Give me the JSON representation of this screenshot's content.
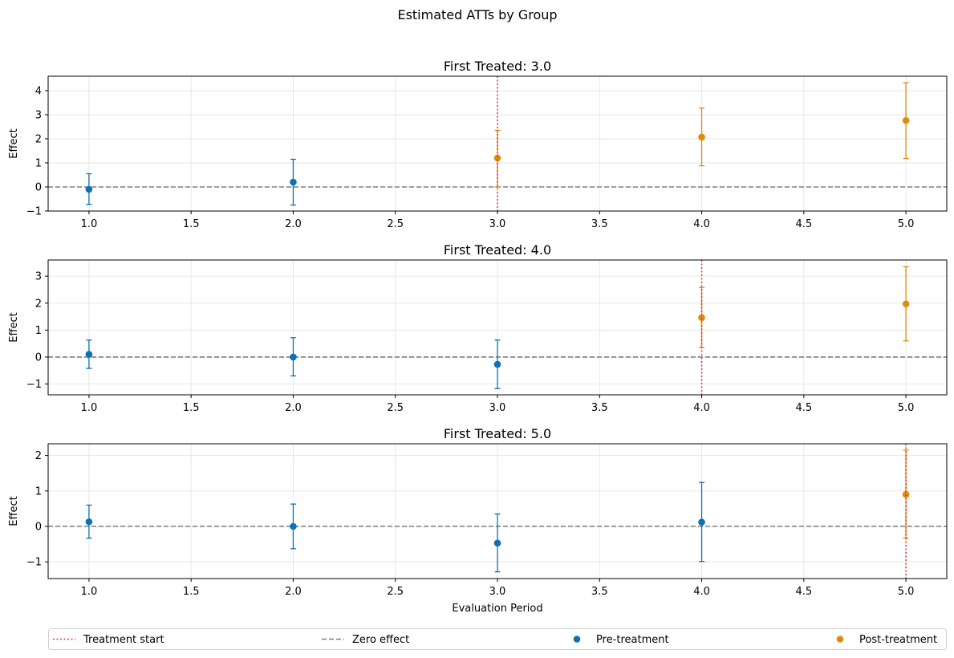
{
  "figure": {
    "title": "Estimated ATTs by Group"
  },
  "colors": {
    "pre": "#0b72b5",
    "post": "#e08c0b",
    "treatment_line": "#e8352b",
    "zero_line": "#7f7f7f",
    "grid": "#e6e6e6"
  },
  "legend": {
    "placement": "bottom-center",
    "items": [
      {
        "label": "Treatment start",
        "kind": "treatment"
      },
      {
        "label": "Zero effect",
        "kind": "zero"
      },
      {
        "label": "Pre-treatment",
        "kind": "pre"
      },
      {
        "label": "Post-treatment",
        "kind": "post"
      }
    ]
  },
  "chart_data": [
    {
      "type": "scatter",
      "title": "First Treated: 3.0",
      "xlabel": "",
      "ylabel": "Effect",
      "xlim": [
        0.8,
        5.2
      ],
      "ylim": [
        -1.0,
        4.6
      ],
      "xticks": [
        "1.0",
        "1.5",
        "2.0",
        "2.5",
        "3.0",
        "3.5",
        "4.0",
        "4.5",
        "5.0"
      ],
      "yticks": [
        "−1",
        "0",
        "1",
        "2",
        "3",
        "4"
      ],
      "ytick_values": [
        -1,
        0,
        1,
        2,
        3,
        4
      ],
      "treatment_start": 3.0,
      "grid": true,
      "points": [
        {
          "x": 1.0,
          "y": -0.1,
          "lo": -0.72,
          "hi": 0.55,
          "phase": "pre"
        },
        {
          "x": 2.0,
          "y": 0.2,
          "lo": -0.75,
          "hi": 1.15,
          "phase": "pre"
        },
        {
          "x": 3.0,
          "y": 1.2,
          "lo": 0.0,
          "hi": 2.35,
          "phase": "post"
        },
        {
          "x": 4.0,
          "y": 2.07,
          "lo": 0.88,
          "hi": 3.28,
          "phase": "post"
        },
        {
          "x": 5.0,
          "y": 2.76,
          "lo": 1.18,
          "hi": 4.33,
          "phase": "post"
        }
      ]
    },
    {
      "type": "scatter",
      "title": "First Treated: 4.0",
      "xlabel": "",
      "ylabel": "Effect",
      "xlim": [
        0.8,
        5.2
      ],
      "ylim": [
        -1.4,
        3.6
      ],
      "xticks": [
        "1.0",
        "1.5",
        "2.0",
        "2.5",
        "3.0",
        "3.5",
        "4.0",
        "4.5",
        "5.0"
      ],
      "yticks": [
        "−1",
        "0",
        "1",
        "2",
        "3"
      ],
      "ytick_values": [
        -1,
        0,
        1,
        2,
        3
      ],
      "treatment_start": 4.0,
      "grid": true,
      "points": [
        {
          "x": 1.0,
          "y": 0.1,
          "lo": -0.42,
          "hi": 0.63,
          "phase": "pre"
        },
        {
          "x": 2.0,
          "y": 0.0,
          "lo": -0.7,
          "hi": 0.72,
          "phase": "pre"
        },
        {
          "x": 3.0,
          "y": -0.27,
          "lo": -1.17,
          "hi": 0.63,
          "phase": "pre"
        },
        {
          "x": 4.0,
          "y": 1.46,
          "lo": 0.35,
          "hi": 2.58,
          "phase": "post"
        },
        {
          "x": 5.0,
          "y": 1.97,
          "lo": 0.6,
          "hi": 3.35,
          "phase": "post"
        }
      ]
    },
    {
      "type": "scatter",
      "title": "First Treated: 5.0",
      "xlabel": "Evaluation Period",
      "ylabel": "Effect",
      "xlim": [
        0.8,
        5.2
      ],
      "ylim": [
        -1.47,
        2.33
      ],
      "xticks": [
        "1.0",
        "1.5",
        "2.0",
        "2.5",
        "3.0",
        "3.5",
        "4.0",
        "4.5",
        "5.0"
      ],
      "yticks": [
        "−1",
        "0",
        "1",
        "2"
      ],
      "ytick_values": [
        -1,
        0,
        1,
        2
      ],
      "treatment_start": 5.0,
      "grid": true,
      "points": [
        {
          "x": 1.0,
          "y": 0.13,
          "lo": -0.33,
          "hi": 0.6,
          "phase": "pre"
        },
        {
          "x": 2.0,
          "y": 0.0,
          "lo": -0.63,
          "hi": 0.63,
          "phase": "pre"
        },
        {
          "x": 3.0,
          "y": -0.47,
          "lo": -1.28,
          "hi": 0.35,
          "phase": "pre"
        },
        {
          "x": 4.0,
          "y": 0.12,
          "lo": -0.99,
          "hi": 1.24,
          "phase": "pre"
        },
        {
          "x": 5.0,
          "y": 0.9,
          "lo": -0.33,
          "hi": 2.15,
          "phase": "post"
        }
      ]
    }
  ]
}
